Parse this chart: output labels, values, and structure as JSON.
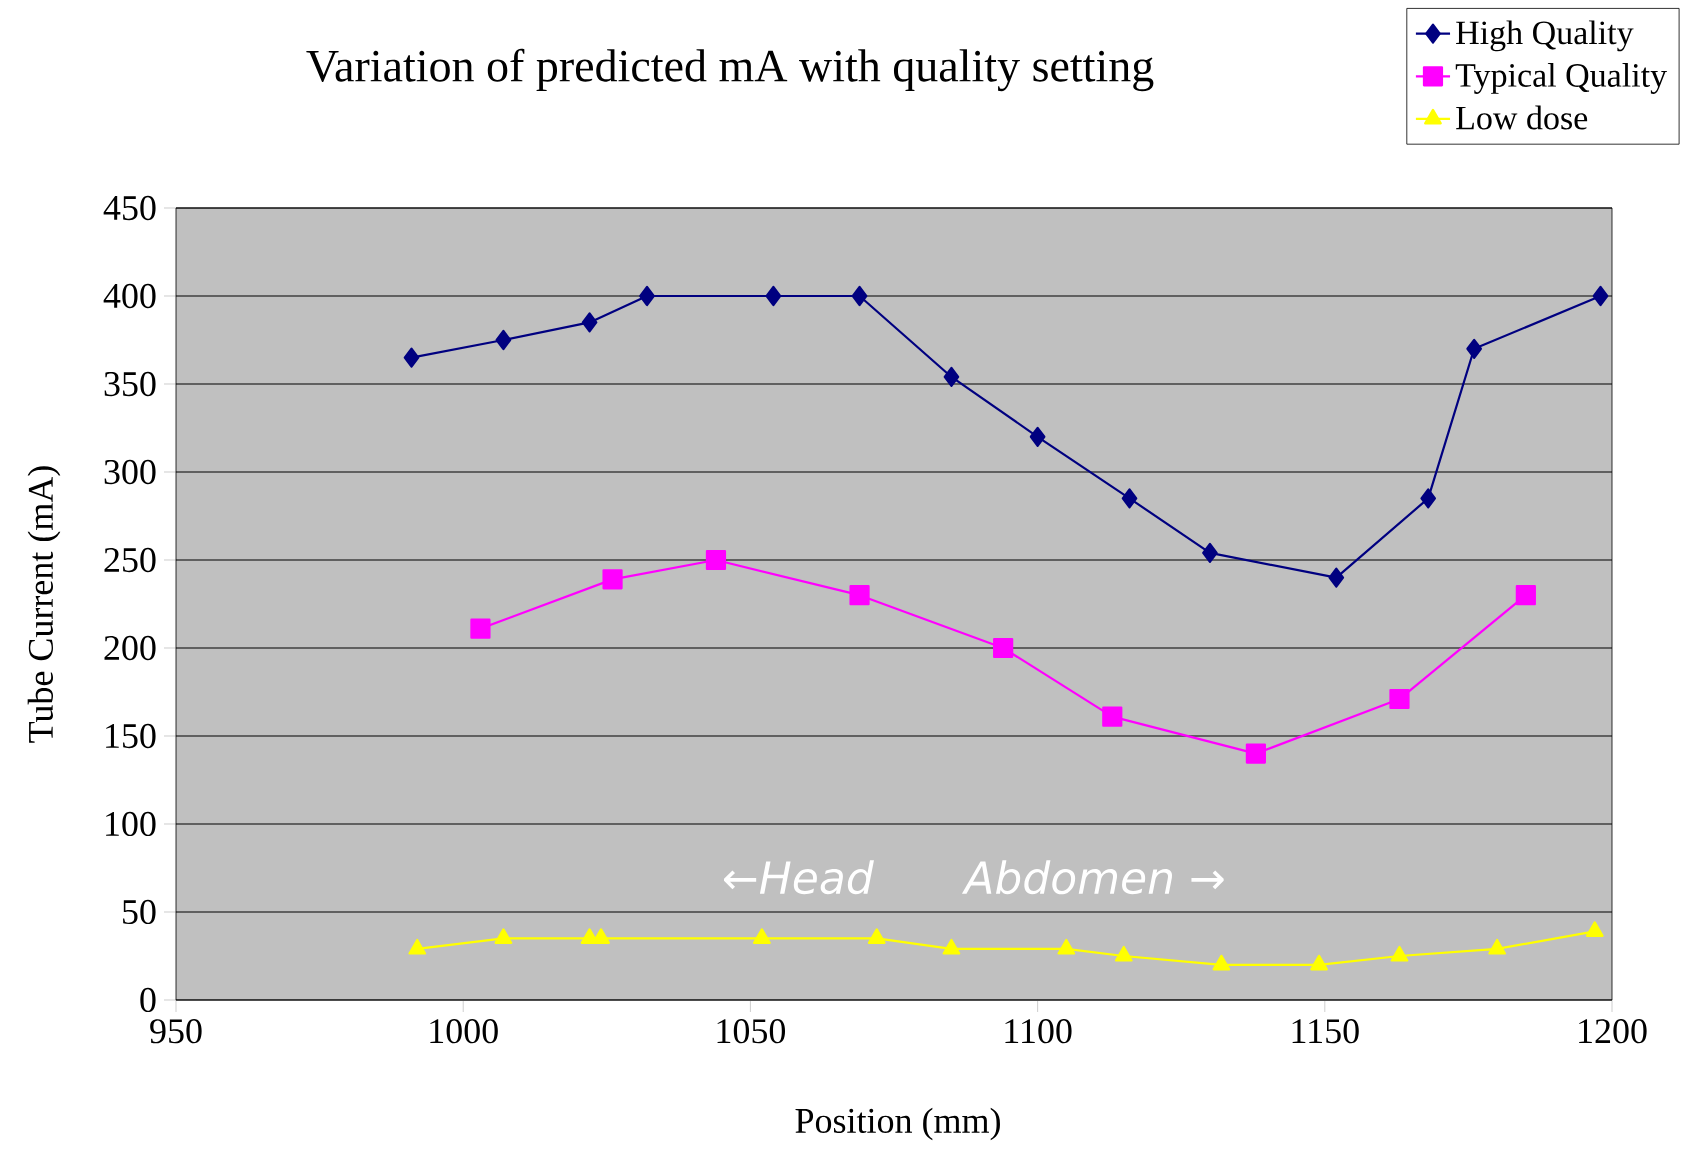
{
  "chart_data": {
    "type": "line",
    "title": "Variation of predicted mA with quality setting",
    "xlabel": "Position (mm)",
    "ylabel": "Tube Current (mA)",
    "xlim": [
      950,
      1200
    ],
    "xticks": [
      950,
      1000,
      1050,
      1100,
      1150,
      1200
    ],
    "ylim": [
      0,
      450
    ],
    "yticks": [
      0,
      50,
      100,
      150,
      200,
      250,
      300,
      350,
      400,
      450
    ],
    "grid": "y",
    "legend": "top right",
    "line_style": "solid",
    "annotations": [
      "←Head",
      "Abdomen →"
    ],
    "series": [
      {
        "name": "High Quality",
        "color": "#000080",
        "marker": "diamond",
        "x": [
          991,
          1007,
          1022,
          1032,
          1054,
          1069,
          1085,
          1100,
          1116,
          1130,
          1152,
          1168,
          1176,
          1198
        ],
        "values": [
          365,
          375,
          385,
          400,
          400,
          400,
          354,
          320,
          285,
          254,
          240,
          285,
          370,
          400
        ]
      },
      {
        "name": "Typical Quality",
        "color": "#ff00ff",
        "marker": "square",
        "x": [
          1003,
          1026,
          1044,
          1069,
          1094,
          1113,
          1138,
          1163,
          1185
        ],
        "values": [
          211,
          239,
          250,
          230,
          200,
          161,
          140,
          171,
          230
        ]
      },
      {
        "name": "Low dose",
        "color": "#ffff00",
        "marker": "triangle",
        "x": [
          992,
          1007,
          1022,
          1024,
          1052,
          1072,
          1085,
          1105,
          1115,
          1132,
          1149,
          1163,
          1180,
          1197
        ],
        "values": [
          29,
          35,
          35,
          35,
          35,
          35,
          29,
          29,
          25,
          20,
          20,
          25,
          29,
          39
        ]
      }
    ]
  }
}
